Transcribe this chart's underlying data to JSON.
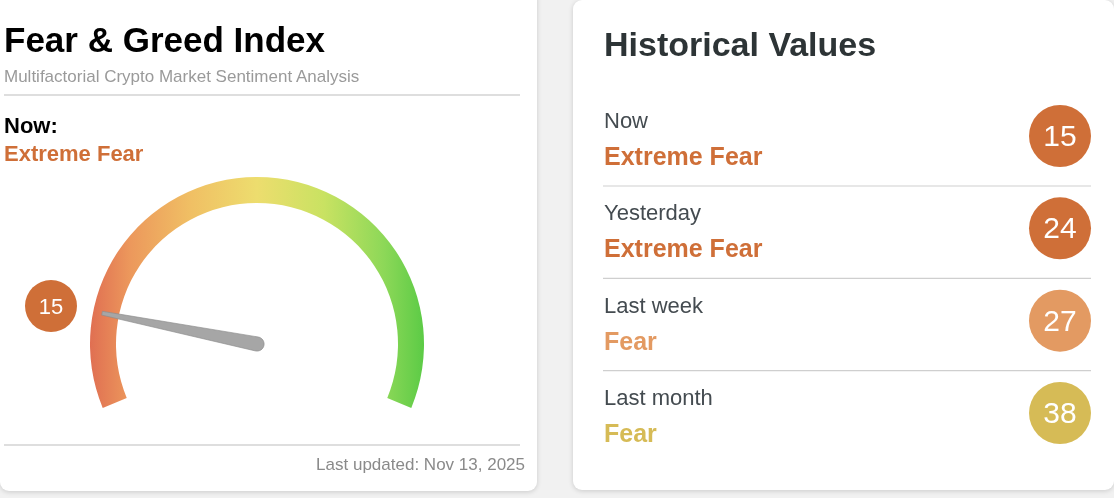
{
  "chart_data": [
    {
      "type": "other",
      "title": "Fear & Greed Index",
      "subtitle": "Multifactorial Crypto Market Sentiment Analysis",
      "values": [
        15
      ],
      "colors": [
        "#cf6f38"
      ],
      "data_labels": true,
      "annotations": [
        "Now:",
        "Extreme Fear",
        "Last updated: Nov 13, 2025"
      ]
    },
    {
      "type": "other",
      "title": "Historical Values",
      "values": [
        15,
        24,
        27,
        38
      ],
      "colors": [
        "#cf6f38",
        "#cf6f38",
        "#e39a62",
        "#d6bb56"
      ],
      "data_labels": true,
      "annotations": [
        "Now",
        "Extreme Fear",
        "Yesterday",
        "Extreme Fear",
        "Last week",
        "Fear",
        "Last month",
        "Fear"
      ]
    }
  ]
}
